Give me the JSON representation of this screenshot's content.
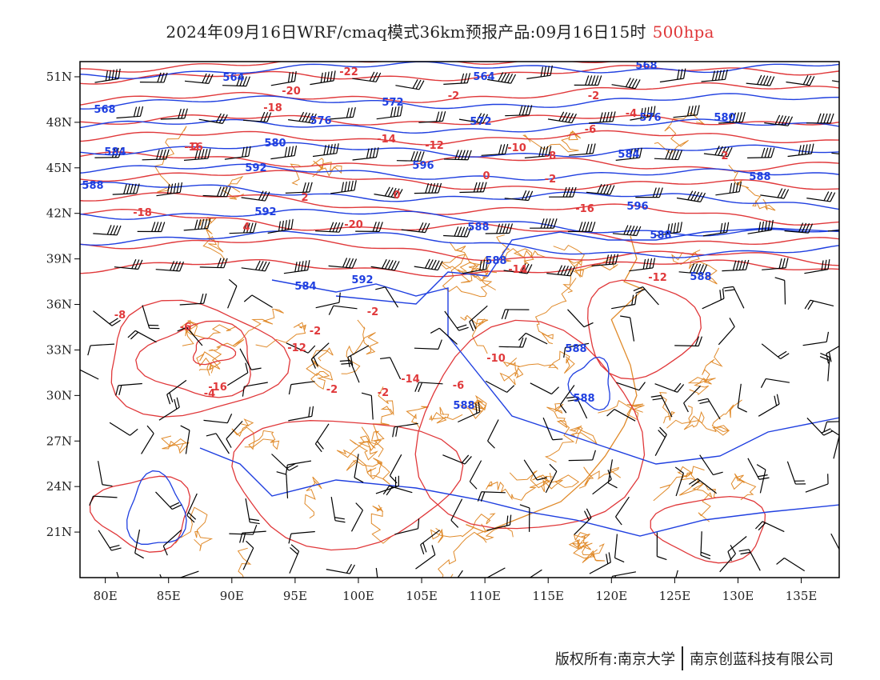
{
  "header": {
    "title": "2024年09月16日WRF/cmaq模式36km预报产品:09月16日15时",
    "level": "500hpa",
    "level_color": "#e0383a"
  },
  "footer": {
    "copyright": "版权所有:南京大学",
    "company": "南京创蓝科技有限公司"
  },
  "map": {
    "lon_ticks": [
      "80E",
      "85E",
      "90E",
      "95E",
      "100E",
      "105E",
      "110E",
      "115E",
      "120E",
      "125E",
      "130E",
      "135E"
    ],
    "lat_ticks": [
      "51N",
      "48N",
      "45N",
      "42N",
      "39N",
      "36N",
      "33N",
      "30N",
      "27N",
      "24N",
      "21N"
    ],
    "lon_range": [
      78,
      138
    ],
    "lat_range": [
      18,
      52
    ],
    "colors": {
      "geopotential": "#1f3fe0",
      "temperature": "#e0383a",
      "border": "#e08a2a",
      "wind": "#000000"
    },
    "geopotential_labels": [
      "564",
      "568",
      "572",
      "576",
      "580",
      "584",
      "588",
      "592",
      "596",
      "564",
      "568",
      "572",
      "576",
      "580",
      "584",
      "588",
      "592",
      "596",
      "588",
      "588",
      "588",
      "584",
      "592",
      "588",
      "588",
      "588",
      "588"
    ],
    "temperature_labels": [
      "-22",
      "-20",
      "-18",
      "-16",
      "-14",
      "-12",
      "-10",
      "-8",
      "-6",
      "-4",
      "-2",
      "0",
      "2",
      "4",
      "-20",
      "-18",
      "-16",
      "-14",
      "-12",
      "-10",
      "-8",
      "-6",
      "-4",
      "-2",
      "-2",
      "-2",
      "-2",
      "-2",
      "0",
      "2",
      "-2",
      "-2",
      "-12",
      "-16",
      "-14",
      "-6"
    ]
  }
}
